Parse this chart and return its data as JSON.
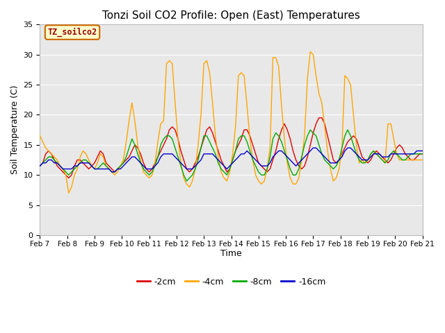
{
  "title": "Tonzi Soil CO2 Profile: Open (East) Temperatures",
  "xlabel": "Time",
  "ylabel": "Soil Temperature (C)",
  "ylim": [
    0,
    35
  ],
  "yticks": [
    0,
    5,
    10,
    15,
    20,
    25,
    30,
    35
  ],
  "bg_color": "#e8e8e8",
  "fig_color": "#ffffff",
  "legend_label": "TZ_soilco2",
  "series": {
    "-2cm": {
      "color": "#dd0000",
      "label": "-2cm"
    },
    "-4cm": {
      "color": "#ffa500",
      "label": "-4cm"
    },
    "-8cm": {
      "color": "#00aa00",
      "label": "-8cm"
    },
    "-16cm": {
      "color": "#0000cc",
      "label": "-16cm"
    }
  },
  "xtick_labels": [
    "Feb 7",
    "Feb 8",
    "Feb 9",
    "Feb 10",
    "Feb 11",
    "Feb 12",
    "Feb 13",
    "Feb 14",
    "Feb 15",
    "Feb 16",
    "Feb 17",
    "Feb 18",
    "Feb 19",
    "Feb 20",
    "Feb 21"
  ],
  "data_2cm": [
    11.5,
    12.0,
    13.5,
    14.0,
    13.5,
    12.5,
    11.5,
    11.0,
    10.5,
    10.0,
    9.5,
    10.0,
    11.5,
    12.5,
    12.5,
    12.0,
    11.5,
    11.0,
    11.5,
    12.0,
    13.0,
    14.0,
    13.5,
    12.0,
    11.5,
    11.0,
    10.5,
    11.0,
    11.5,
    12.0,
    12.5,
    13.0,
    14.0,
    15.0,
    14.5,
    13.5,
    12.0,
    11.0,
    10.5,
    11.0,
    12.0,
    13.0,
    14.0,
    15.0,
    16.0,
    17.5,
    18.0,
    17.5,
    16.0,
    14.0,
    12.5,
    11.0,
    10.5,
    11.0,
    12.0,
    13.0,
    14.5,
    16.0,
    17.5,
    18.0,
    17.0,
    15.5,
    14.0,
    12.5,
    11.5,
    10.5,
    11.0,
    12.5,
    14.0,
    15.0,
    16.0,
    17.5,
    17.5,
    16.5,
    15.0,
    13.5,
    12.0,
    11.5,
    11.0,
    10.5,
    11.0,
    12.5,
    14.0,
    16.0,
    17.5,
    18.5,
    17.5,
    16.0,
    14.0,
    12.5,
    11.5,
    11.0,
    11.5,
    13.0,
    15.0,
    17.0,
    18.5,
    19.5,
    19.5,
    18.5,
    16.5,
    14.5,
    12.5,
    12.0,
    12.5,
    13.5,
    14.5,
    15.5,
    16.0,
    16.5,
    16.0,
    14.5,
    13.0,
    12.5,
    12.0,
    12.5,
    13.5,
    14.0,
    13.5,
    13.0,
    12.5,
    12.0,
    12.5,
    13.5,
    14.5,
    15.0,
    14.5,
    13.5,
    13.0,
    12.5,
    12.5,
    13.0,
    13.5,
    13.5
  ],
  "data_4cm": [
    16.5,
    15.5,
    14.5,
    14.0,
    13.5,
    13.0,
    12.5,
    11.5,
    11.0,
    10.0,
    7.0,
    8.0,
    10.0,
    11.0,
    13.0,
    14.0,
    13.5,
    12.5,
    11.5,
    11.0,
    12.0,
    13.5,
    13.0,
    11.5,
    11.0,
    10.5,
    10.0,
    10.5,
    11.5,
    12.5,
    15.5,
    19.0,
    22.0,
    19.0,
    15.0,
    12.5,
    10.5,
    10.0,
    9.5,
    10.0,
    12.0,
    15.5,
    18.5,
    19.0,
    28.5,
    29.0,
    28.5,
    22.0,
    16.0,
    12.0,
    9.5,
    8.5,
    8.0,
    9.0,
    11.0,
    15.0,
    20.0,
    28.5,
    29.0,
    27.0,
    22.0,
    16.5,
    13.0,
    10.5,
    9.5,
    9.0,
    10.5,
    13.5,
    18.0,
    26.5,
    27.0,
    26.5,
    21.5,
    16.0,
    12.5,
    10.0,
    9.0,
    8.5,
    9.0,
    11.0,
    14.5,
    29.5,
    29.5,
    28.0,
    21.5,
    16.0,
    12.0,
    9.5,
    8.5,
    8.5,
    9.5,
    12.5,
    16.5,
    26.0,
    30.5,
    30.0,
    26.5,
    23.5,
    22.0,
    18.0,
    14.0,
    11.0,
    9.0,
    9.5,
    11.0,
    14.5,
    26.5,
    26.0,
    25.0,
    20.0,
    15.0,
    12.0,
    12.5,
    12.0,
    12.5,
    13.5,
    14.0,
    13.5,
    13.0,
    12.5,
    12.0,
    18.5,
    18.5,
    16.0,
    13.5,
    12.5,
    12.5,
    12.5,
    12.5,
    12.5,
    12.5,
    12.5,
    12.5,
    12.5
  ],
  "data_8cm": [
    11.5,
    12.0,
    12.5,
    13.0,
    13.0,
    12.5,
    12.0,
    11.5,
    11.0,
    10.5,
    10.0,
    10.5,
    11.0,
    11.5,
    12.0,
    12.5,
    12.5,
    12.0,
    11.5,
    11.0,
    11.0,
    11.5,
    12.0,
    11.5,
    11.0,
    10.5,
    10.5,
    11.0,
    11.5,
    12.0,
    13.0,
    14.5,
    16.0,
    15.0,
    13.5,
    12.0,
    11.0,
    10.5,
    10.0,
    10.5,
    11.5,
    13.0,
    15.0,
    16.0,
    16.5,
    16.5,
    16.0,
    14.5,
    13.0,
    11.5,
    10.0,
    9.0,
    9.5,
    10.0,
    11.0,
    12.5,
    14.5,
    16.5,
    16.5,
    15.5,
    14.5,
    13.5,
    12.0,
    11.0,
    10.5,
    10.0,
    11.0,
    12.5,
    14.0,
    16.0,
    16.5,
    16.5,
    15.5,
    14.0,
    12.5,
    11.5,
    10.5,
    10.0,
    10.0,
    11.0,
    13.0,
    16.0,
    17.0,
    16.5,
    15.5,
    14.0,
    12.5,
    11.0,
    10.0,
    10.0,
    11.0,
    13.0,
    15.0,
    16.5,
    17.5,
    17.0,
    16.5,
    15.0,
    13.5,
    12.5,
    12.0,
    11.5,
    11.0,
    11.5,
    12.5,
    14.5,
    16.5,
    17.5,
    16.5,
    15.0,
    13.5,
    12.5,
    12.0,
    12.0,
    12.5,
    13.5,
    14.0,
    13.5,
    13.0,
    12.5,
    12.0,
    12.5,
    13.5,
    14.0,
    13.5,
    13.0,
    12.5,
    12.5,
    13.0,
    13.5,
    13.5,
    13.5,
    13.5,
    13.5
  ],
  "data_16cm": [
    11.5,
    12.0,
    12.0,
    12.5,
    12.5,
    12.0,
    12.0,
    11.5,
    11.0,
    11.0,
    11.0,
    11.0,
    11.5,
    11.5,
    12.0,
    12.0,
    12.0,
    12.0,
    11.5,
    11.0,
    11.0,
    11.0,
    11.0,
    11.0,
    11.0,
    10.5,
    10.5,
    11.0,
    11.0,
    11.5,
    12.0,
    12.5,
    13.0,
    13.0,
    12.5,
    12.0,
    11.5,
    11.0,
    11.0,
    11.0,
    11.5,
    12.0,
    13.0,
    13.5,
    13.5,
    13.5,
    13.5,
    13.0,
    12.5,
    12.0,
    11.5,
    11.0,
    11.0,
    11.0,
    11.5,
    12.0,
    12.5,
    13.5,
    13.5,
    13.5,
    13.5,
    13.0,
    12.5,
    12.0,
    11.5,
    11.0,
    11.5,
    12.0,
    12.5,
    13.0,
    13.5,
    13.5,
    14.0,
    13.5,
    13.0,
    12.5,
    12.0,
    11.5,
    11.5,
    11.5,
    12.0,
    13.0,
    13.5,
    14.0,
    14.0,
    13.5,
    13.0,
    12.5,
    12.0,
    11.5,
    12.0,
    12.5,
    13.0,
    13.5,
    14.0,
    14.5,
    14.5,
    14.0,
    13.5,
    13.0,
    12.5,
    12.0,
    12.0,
    12.0,
    12.5,
    13.0,
    14.0,
    14.5,
    14.5,
    14.0,
    13.5,
    13.0,
    12.5,
    12.5,
    12.5,
    13.0,
    13.5,
    13.5,
    13.5,
    13.0,
    13.0,
    13.0,
    13.5,
    13.5,
    13.5,
    13.5,
    13.5,
    13.5,
    13.5,
    13.5,
    13.5,
    14.0,
    14.0,
    14.0
  ]
}
